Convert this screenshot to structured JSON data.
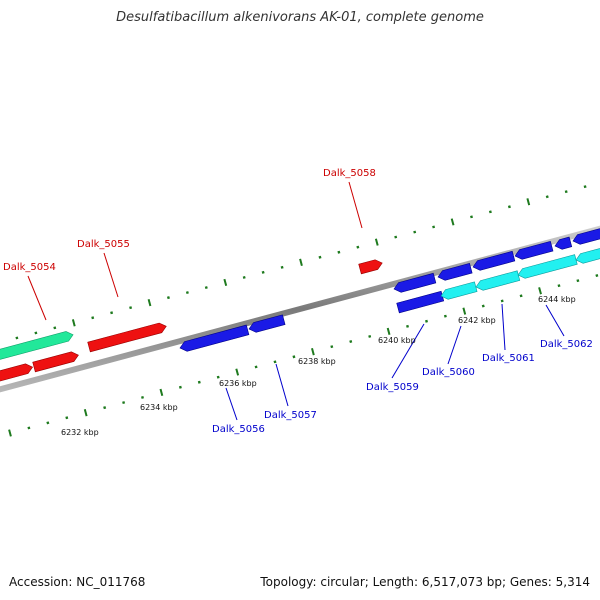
{
  "title": "Desulfatibacillum alkenivorans AK-01, complete genome",
  "footer": {
    "accession": "Accession: NC_011768",
    "summary": "Topology: circular; Length: 6,517,073 bp; Genes: 5,314"
  },
  "colors": {
    "backbone": "#8a8a8a",
    "tick": "#1e7a1e",
    "top_label": "#cc0000",
    "bottom_label": "#0000cc",
    "red_gene": "#ee1111",
    "blue_gene": "#1a1ae6",
    "cyan_gene": "#22f0f0",
    "teal_gene": "#22e89a"
  },
  "ruler_labels": [
    "6232 kbp",
    "6234 kbp",
    "6236 kbp",
    "6238 kbp",
    "6240 kbp",
    "6242 kbp",
    "6244 kbp"
  ],
  "genes_top": [
    "Dalk_5054",
    "Dalk_5055",
    "Dalk_5058"
  ],
  "genes_bottom": [
    "Dalk_5056",
    "Dalk_5057",
    "Dalk_5059",
    "Dalk_5060",
    "Dalk_5061",
    "Dalk_5062"
  ]
}
